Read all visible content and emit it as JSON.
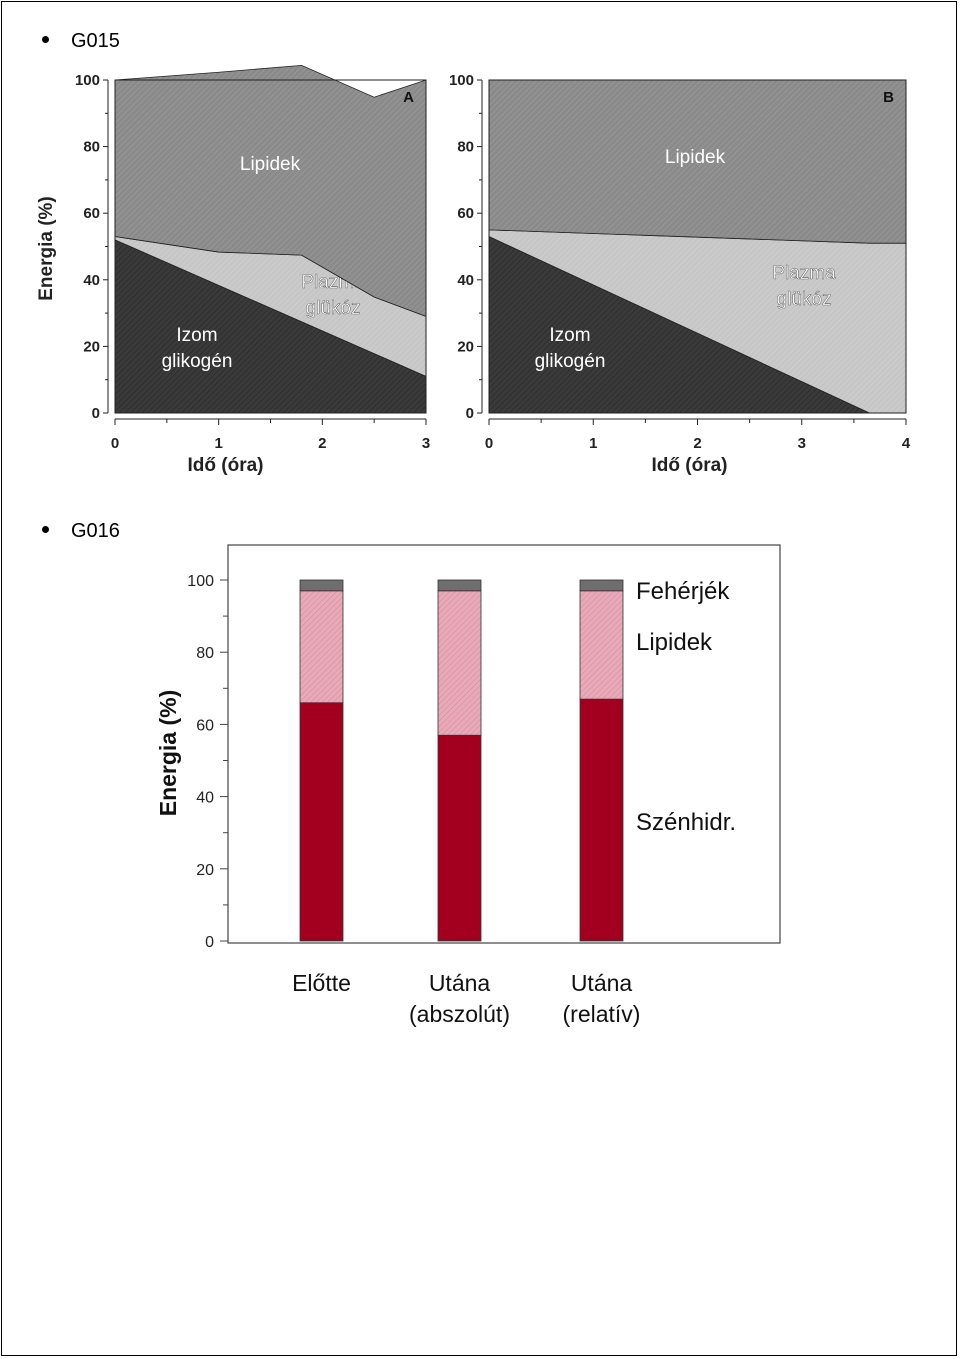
{
  "sections": [
    {
      "label": "G015"
    },
    {
      "label": "G016"
    }
  ],
  "colors": {
    "lipid_gray": "#8a8a8a",
    "glucose_light": "#c6c6c6",
    "glycogen_dark": "#3a3a3a",
    "carb_red": "#a0001c",
    "lipid_pink": "#e8aab8",
    "protein_gray": "#6e6e6e"
  },
  "chart_data": [
    {
      "type": "area",
      "panel": "A",
      "ylabel": "Energia (%)",
      "xlabel": "Idő (óra)",
      "xlim": [
        0,
        3
      ],
      "ylim": [
        0,
        100
      ],
      "x_ticks": [
        "0",
        "1",
        "2",
        "3"
      ],
      "y_ticks": [
        "0",
        "20",
        "40",
        "60",
        "80",
        "100"
      ],
      "stacked": true,
      "series": [
        {
          "name": "Izom glikogén",
          "label_lines": [
            "Izom",
            "glikogén"
          ],
          "x": [
            0,
            3
          ],
          "values": [
            52,
            11
          ]
        },
        {
          "name": "Plazma glükóz",
          "label_lines": [
            "Plazma",
            "glükóz"
          ],
          "x": [
            0,
            1,
            1.8,
            2.5,
            3
          ],
          "values": [
            1,
            10,
            20,
            17,
            18
          ]
        },
        {
          "name": "Lipidek",
          "label_lines": [
            "Lipidek"
          ],
          "x": [
            0,
            1,
            1.8,
            2.5,
            3
          ],
          "values": [
            47,
            54,
            57,
            60,
            71
          ]
        }
      ]
    },
    {
      "type": "area",
      "panel": "B",
      "ylabel": "",
      "xlabel": "Idő (óra)",
      "xlim": [
        0,
        4
      ],
      "ylim": [
        0,
        100
      ],
      "x_ticks": [
        "0",
        "1",
        "2",
        "3",
        "4"
      ],
      "y_ticks": [
        "0",
        "20",
        "40",
        "60",
        "80",
        "100"
      ],
      "stacked": true,
      "series": [
        {
          "name": "Izom glikogén",
          "label_lines": [
            "Izom",
            "glikogén"
          ],
          "x": [
            0,
            3.65,
            4
          ],
          "values": [
            53,
            0,
            0
          ]
        },
        {
          "name": "Plazma glükóz",
          "label_lines": [
            "Plazma",
            "glükóz"
          ],
          "x": [
            0,
            3.65,
            4
          ],
          "values": [
            2,
            51,
            51
          ]
        },
        {
          "name": "Lipidek",
          "label_lines": [
            "Lipidek"
          ],
          "x": [
            0,
            3.65,
            4
          ],
          "values": [
            45,
            49,
            49
          ]
        }
      ]
    },
    {
      "type": "bar",
      "stacked": true,
      "ylabel": "Energia (%)",
      "ylim": [
        0,
        100
      ],
      "y_ticks": [
        "0",
        "20",
        "40",
        "60",
        "80",
        "100"
      ],
      "categories": [
        {
          "lines": [
            "Előtte"
          ]
        },
        {
          "lines": [
            "Utána",
            "(abszolút)"
          ]
        },
        {
          "lines": [
            "Utána",
            "(relatív)"
          ]
        }
      ],
      "series": [
        {
          "name": "Szénhidr.",
          "values": [
            66,
            57,
            67
          ]
        },
        {
          "name": "Lipidek",
          "values": [
            31,
            40,
            30
          ]
        },
        {
          "name": "Fehérjék",
          "values": [
            3,
            3,
            3
          ]
        }
      ]
    }
  ]
}
